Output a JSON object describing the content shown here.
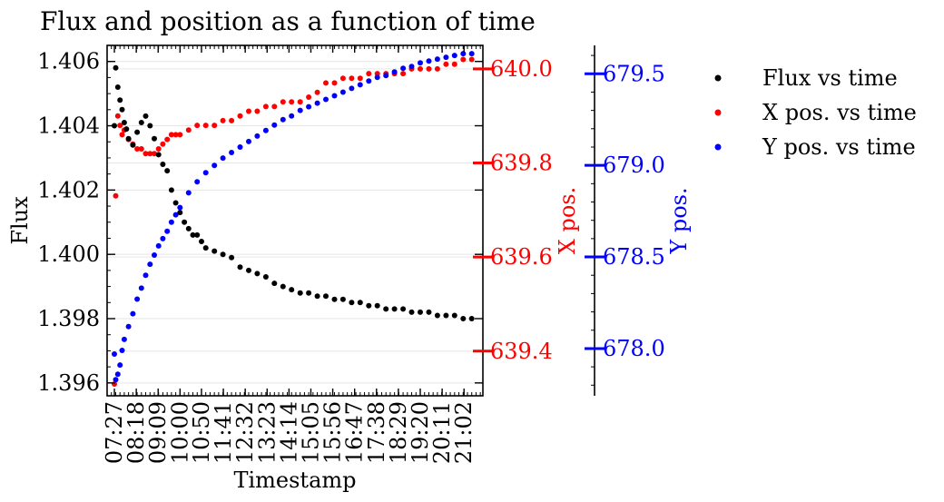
{
  "chart_data": {
    "type": "scatter",
    "title": "Flux and position as a function of time",
    "xlabel": "Timestamp",
    "x_tick_labels": [
      "07:27",
      "08:18",
      "09:09",
      "10:00",
      "10:50",
      "11:41",
      "12:32",
      "13:23",
      "14:14",
      "15:05",
      "15:56",
      "16:47",
      "17:38",
      "18:29",
      "19:20",
      "20:11",
      "21:02"
    ],
    "xlim_minutes": [
      430,
      1306
    ],
    "grid": "horizontal, faint",
    "legend_placement": "outside right",
    "axes": [
      {
        "id": "flux",
        "label": "Flux",
        "side": "left",
        "color": "#000000",
        "ylim": [
          1.3956,
          1.4065
        ],
        "ticks": [
          "1.396",
          "1.398",
          "1.400",
          "1.402",
          "1.404",
          "1.406"
        ],
        "tick_values": [
          1.396,
          1.398,
          1.4,
          1.402,
          1.404,
          1.406
        ]
      },
      {
        "id": "xpos",
        "label": "X pos.",
        "side": "right",
        "color": "#ff0000",
        "ylim": [
          639.305,
          640.05
        ],
        "ticks": [
          "639.4",
          "639.6",
          "639.8",
          "640.0"
        ],
        "tick_values": [
          639.4,
          639.6,
          639.8,
          640.0
        ]
      },
      {
        "id": "ypos",
        "label": "Y pos.",
        "side": "right-offset",
        "color": "#0000ff",
        "ylim": [
          677.742,
          679.655
        ],
        "ticks": [
          "678.0",
          "678.5",
          "679.0",
          "679.5"
        ],
        "tick_values": [
          678.0,
          678.5,
          679.0,
          679.5
        ]
      }
    ],
    "series": [
      {
        "name": "Flux vs time",
        "axis": "flux",
        "color": "#000000",
        "x": [
          447,
          450,
          455,
          460,
          465,
          470,
          475,
          480,
          490,
          500,
          510,
          520,
          530,
          540,
          550,
          560,
          570,
          580,
          590,
          600,
          610,
          620,
          630,
          640,
          650,
          660,
          680,
          700,
          720,
          740,
          760,
          780,
          800,
          820,
          840,
          860,
          880,
          900,
          920,
          940,
          960,
          980,
          1000,
          1020,
          1040,
          1060,
          1080,
          1100,
          1120,
          1140,
          1160,
          1180,
          1200,
          1220,
          1240,
          1260,
          1280
        ],
        "y": [
          1.404,
          1.4058,
          1.4052,
          1.4048,
          1.4045,
          1.4041,
          1.4039,
          1.4036,
          1.4034,
          1.4038,
          1.4041,
          1.4043,
          1.404,
          1.4036,
          1.4031,
          1.4028,
          1.4026,
          1.402,
          1.4016,
          1.4013,
          1.401,
          1.4008,
          1.4006,
          1.4006,
          1.4004,
          1.4002,
          1.4001,
          1.4,
          1.3999,
          1.3996,
          1.3995,
          1.3994,
          1.3993,
          1.3991,
          1.399,
          1.3989,
          1.3988,
          1.3988,
          1.3987,
          1.3987,
          1.3986,
          1.3986,
          1.3985,
          1.3985,
          1.3984,
          1.3984,
          1.3983,
          1.3983,
          1.3983,
          1.3982,
          1.3982,
          1.3982,
          1.3981,
          1.3981,
          1.3981,
          1.398,
          1.398
        ]
      },
      {
        "name": "X pos. vs time",
        "axis": "xpos",
        "color": "#ff0000",
        "x": [
          447,
          450,
          455,
          460,
          465,
          470,
          480,
          490,
          500,
          510,
          520,
          530,
          540,
          550,
          560,
          570,
          580,
          590,
          600,
          620,
          640,
          660,
          680,
          700,
          720,
          740,
          760,
          780,
          800,
          820,
          840,
          860,
          880,
          900,
          920,
          940,
          960,
          980,
          1000,
          1020,
          1040,
          1060,
          1080,
          1100,
          1120,
          1140,
          1160,
          1180,
          1200,
          1220,
          1240,
          1260,
          1280
        ],
        "y": [
          639.33,
          639.73,
          639.9,
          639.88,
          639.86,
          639.87,
          639.85,
          639.84,
          639.83,
          639.83,
          639.82,
          639.82,
          639.82,
          639.83,
          639.84,
          639.85,
          639.86,
          639.86,
          639.86,
          639.87,
          639.88,
          639.88,
          639.88,
          639.89,
          639.89,
          639.9,
          639.91,
          639.91,
          639.92,
          639.92,
          639.93,
          639.93,
          639.93,
          639.94,
          639.95,
          639.97,
          639.97,
          639.98,
          639.98,
          639.98,
          639.99,
          639.99,
          639.99,
          639.99,
          639.99,
          640.0,
          640.0,
          640.0,
          640.0,
          640.01,
          640.01,
          640.02,
          640.02
        ]
      },
      {
        "name": "Y pos. vs time",
        "axis": "ypos",
        "color": "#0000ff",
        "x": [
          447,
          450,
          455,
          460,
          465,
          470,
          480,
          490,
          500,
          510,
          520,
          530,
          540,
          550,
          560,
          570,
          580,
          590,
          600,
          620,
          640,
          660,
          680,
          700,
          720,
          740,
          760,
          780,
          800,
          820,
          840,
          860,
          880,
          900,
          920,
          940,
          960,
          980,
          1000,
          1020,
          1040,
          1060,
          1080,
          1100,
          1120,
          1140,
          1160,
          1180,
          1200,
          1220,
          1240,
          1260,
          1280
        ],
        "y": [
          677.97,
          677.83,
          677.86,
          677.91,
          677.99,
          678.05,
          678.12,
          678.19,
          678.27,
          678.33,
          678.4,
          678.46,
          678.51,
          678.56,
          678.6,
          678.64,
          678.69,
          678.73,
          678.77,
          678.85,
          678.91,
          678.96,
          679.0,
          679.04,
          679.07,
          679.1,
          679.13,
          679.16,
          679.19,
          679.22,
          679.25,
          679.27,
          679.3,
          679.32,
          679.34,
          679.36,
          679.38,
          679.4,
          679.42,
          679.44,
          679.46,
          679.48,
          679.49,
          679.51,
          679.53,
          679.54,
          679.56,
          679.57,
          679.58,
          679.59,
          679.6,
          679.61,
          679.61
        ]
      }
    ]
  }
}
